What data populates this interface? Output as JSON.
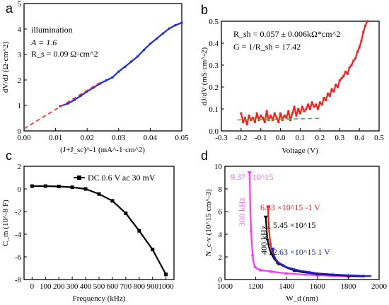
{
  "panels": {
    "a": {
      "label": "a",
      "xlabel": "(J+J_sc)^-1 (mA^-1·cm^2)",
      "ylabel": "dV/dJ (Ω·cm^2)",
      "annot": {
        "line1": "illumination",
        "line2": "A = 1.6",
        "line3": "R_s = 0.09 Ω·cm^2"
      }
    },
    "b": {
      "label": "b",
      "xlabel": "Voltage (V)",
      "ylabel": "dJ/dV (mS·cm^-2)",
      "annot": {
        "line1": "R_sh = 0.057 ± 0.006kΩ*cm^2",
        "line2": "G = 1/R_sh = 17.42"
      }
    },
    "c": {
      "label": "c",
      "xlabel": "Frequency (kHz)",
      "ylabel": "C_m (10^-8 F)",
      "legend": "DC 0.6 V ac 30 mV"
    },
    "d": {
      "label": "d",
      "xlabel": "W_d (nm)",
      "ylabel": "N_c-v (10^15 cm^-3)",
      "annotations": {
        "pink_peak": "9.37 ×10^15",
        "pink_freq": "300 kHz",
        "red_peak": "6.33 ×10^15 -1 V",
        "black_freq": "400 kHz",
        "black_peak": "5.45 ×10^15",
        "blue_peak": "2.63 ×10^15 1 V"
      }
    }
  },
  "chart_data": [
    {
      "panel": "a",
      "type": "line",
      "xlim": [
        0,
        0.05
      ],
      "ylim": [
        0,
        5
      ],
      "xticks": [
        "0.00",
        "0.01",
        "0.02",
        "0.03",
        "0.04",
        "0.05"
      ],
      "yticks": [
        "0",
        "1",
        "2",
        "3",
        "4",
        "5"
      ],
      "series": [
        {
          "color": "#1f2bd6",
          "x": [
            0.0115,
            0.014,
            0.016,
            0.018,
            0.02,
            0.022,
            0.024,
            0.026,
            0.028,
            0.03,
            0.032,
            0.034,
            0.036,
            0.038,
            0.04,
            0.042,
            0.044,
            0.046,
            0.048,
            0.05
          ],
          "y": [
            0.97,
            1.08,
            1.22,
            1.38,
            1.55,
            1.7,
            1.85,
            1.98,
            2.1,
            2.33,
            2.52,
            2.72,
            2.92,
            3.18,
            3.42,
            3.62,
            3.82,
            4.02,
            4.15,
            4.25
          ]
        },
        {
          "color": "#ff2a2a",
          "dashed": true,
          "x": [
            0,
            0.025
          ],
          "y": [
            0.09,
            1.97
          ]
        }
      ]
    },
    {
      "panel": "b",
      "type": "line",
      "xlim": [
        -0.3,
        0.5
      ],
      "ylim": [
        0,
        0.5
      ],
      "xticks": [
        "-0.3",
        "-0.2",
        "-0.1",
        "0.0",
        "0.1",
        "0.2",
        "0.3",
        "0.4",
        "0.5"
      ],
      "yticks": [
        "0.0",
        "0.1",
        "0.2",
        "0.3",
        "0.4",
        "0.5"
      ],
      "series": [
        {
          "color": "#ff1a1a",
          "x": [
            -0.2,
            -0.19,
            -0.18,
            -0.17,
            -0.16,
            -0.15,
            -0.14,
            -0.13,
            -0.12,
            -0.11,
            -0.1,
            -0.09,
            -0.08,
            -0.07,
            -0.06,
            -0.05,
            -0.04,
            -0.03,
            -0.02,
            -0.01,
            0.0,
            0.01,
            0.02,
            0.03,
            0.04,
            0.05,
            0.06,
            0.07,
            0.08,
            0.09,
            0.1,
            0.11,
            0.12,
            0.13,
            0.14,
            0.15,
            0.16,
            0.17,
            0.18,
            0.19,
            0.2,
            0.21,
            0.22,
            0.23,
            0.24,
            0.25,
            0.26,
            0.27,
            0.28,
            0.29,
            0.3,
            0.31,
            0.32,
            0.33,
            0.34,
            0.35,
            0.36,
            0.37,
            0.38,
            0.39,
            0.4,
            0.41,
            0.42,
            0.43,
            0.44
          ],
          "y": [
            0.08,
            0.04,
            0.06,
            0.03,
            0.07,
            0.05,
            0.06,
            0.04,
            0.08,
            0.05,
            0.07,
            0.06,
            0.04,
            0.09,
            0.05,
            0.07,
            0.05,
            0.08,
            0.06,
            0.04,
            0.08,
            0.05,
            0.07,
            0.06,
            0.09,
            0.05,
            0.08,
            0.11,
            0.07,
            0.1,
            0.08,
            0.11,
            0.09,
            0.1,
            0.12,
            0.1,
            0.13,
            0.11,
            0.12,
            0.1,
            0.13,
            0.12,
            0.15,
            0.14,
            0.17,
            0.16,
            0.19,
            0.18,
            0.21,
            0.2,
            0.23,
            0.24,
            0.25,
            0.27,
            0.26,
            0.29,
            0.3,
            0.32,
            0.33,
            0.36,
            0.38,
            0.41,
            0.45,
            0.48,
            0.5
          ]
        },
        {
          "color": "#22cc22",
          "dashed": true,
          "x": [
            -0.22,
            0.2
          ],
          "y": [
            0.05,
            0.057
          ]
        }
      ]
    },
    {
      "panel": "c",
      "type": "line",
      "xlim": [
        -60,
        1060
      ],
      "ylim": [
        -8,
        2
      ],
      "xticks": [
        "0",
        "100",
        "200",
        "300",
        "400",
        "500",
        "600",
        "700",
        "800",
        "900",
        "1000"
      ],
      "yticks": [
        "2",
        "0",
        "-2",
        "-4",
        "-6",
        "-8"
      ],
      "series": [
        {
          "name": "DC 0.6 V ac 30 mV",
          "color": "#000000",
          "x": [
            0,
            100,
            200,
            300,
            400,
            500,
            600,
            700,
            800,
            900,
            1000
          ],
          "y": [
            0.25,
            0.25,
            0.22,
            0.15,
            0.0,
            -0.45,
            -1.05,
            -2.15,
            -3.7,
            -5.35,
            -7.55
          ]
        }
      ]
    },
    {
      "panel": "d",
      "type": "line",
      "xlim": [
        1000,
        2000
      ],
      "ylim": [
        0,
        10
      ],
      "xticks": [
        "1000",
        "1200",
        "1400",
        "1600",
        "1800",
        "2000"
      ],
      "yticks": [
        "0",
        "2",
        "4",
        "6",
        "8",
        "10"
      ],
      "series": [
        {
          "color": "#ff33ff",
          "x": [
            1160,
            1165,
            1170,
            1175,
            1180,
            1185,
            1195,
            1210,
            1230,
            1260,
            1300,
            1350,
            1400,
            1500,
            1600,
            1700,
            1800,
            1900
          ],
          "y": [
            9.37,
            6.2,
            4.3,
            3.1,
            2.2,
            1.55,
            1.15,
            0.95,
            0.85,
            0.78,
            0.72,
            0.62,
            0.55,
            0.45,
            0.38,
            0.32,
            0.28,
            0.25
          ]
        },
        {
          "color": "#ff1a1a",
          "x": [
            1280,
            1282,
            1285,
            1290,
            1295,
            1300,
            1310,
            1320,
            1340,
            1360
          ],
          "y": [
            6.33,
            5.4,
            4.6,
            3.8,
            3.2,
            2.8,
            2.3,
            1.9,
            1.5,
            1.3
          ]
        },
        {
          "color": "#000000",
          "x": [
            1265,
            1270,
            1275,
            1285,
            1300,
            1320,
            1350,
            1400,
            1450,
            1500,
            1600,
            1700,
            1800,
            1900
          ],
          "y": [
            5.45,
            4.5,
            3.6,
            2.9,
            2.3,
            1.8,
            1.4,
            1.05,
            0.8,
            0.65,
            0.5,
            0.4,
            0.33,
            0.28
          ]
        },
        {
          "color": "#2020e0",
          "x": [
            1310,
            1315,
            1320,
            1330,
            1340,
            1360,
            1380,
            1400,
            1450,
            1500,
            1550,
            1600,
            1700,
            1800,
            1900,
            1950
          ],
          "y": [
            2.63,
            2.3,
            2.05,
            1.8,
            1.6,
            1.4,
            1.25,
            1.1,
            0.9,
            0.75,
            0.65,
            0.55,
            0.45,
            0.38,
            0.32,
            0.3
          ]
        }
      ]
    }
  ]
}
